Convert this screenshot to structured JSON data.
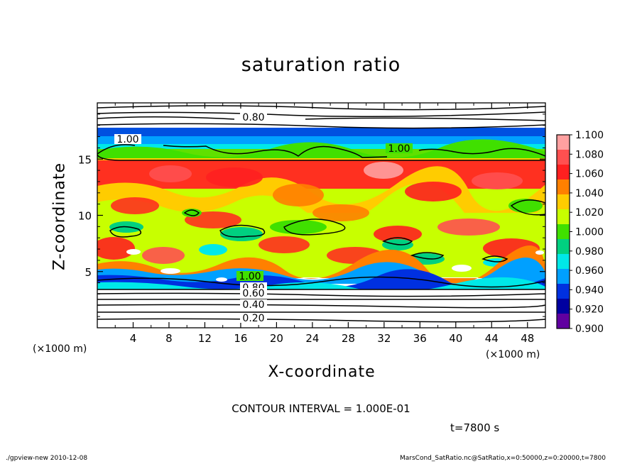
{
  "chart_data": {
    "type": "heatmap",
    "title": "saturation ratio",
    "xlabel": "X-coordinate",
    "ylabel": "Z-coordinate",
    "x_unit": "(×1000 m)",
    "x_unit_right": "(×1000 m)",
    "xlim": [
      0,
      50
    ],
    "ylim": [
      0,
      20
    ],
    "x_ticks": [
      "4",
      "8",
      "12",
      "16",
      "20",
      "24",
      "28",
      "32",
      "36",
      "40",
      "44",
      "48"
    ],
    "x_tick_values": [
      4,
      8,
      12,
      16,
      20,
      24,
      28,
      32,
      36,
      40,
      44,
      48
    ],
    "y_ticks": [
      "5",
      "10",
      "15"
    ],
    "y_tick_values": [
      5,
      10,
      15
    ],
    "colorbar": {
      "labels": [
        "1.100",
        "1.080",
        "1.060",
        "1.040",
        "1.020",
        "1.000",
        "0.980",
        "0.960",
        "0.940",
        "0.920",
        "0.900"
      ],
      "colors": [
        "#ffa0a0",
        "#ff5050",
        "#ff2020",
        "#ff8000",
        "#ffcc00",
        "#c8ff00",
        "#40e000",
        "#00d080",
        "#00e8e8",
        "#00a0ff",
        "#0030e0",
        "#0000a0",
        "#6000a0"
      ]
    },
    "contour_labels": [
      "0.80",
      "1.00",
      "1.00",
      "1.00",
      "0.80",
      "0.60",
      "0.40",
      "0.20"
    ],
    "contour_interval": "CONTOUR INTERVAL = 1.000E-01",
    "time": "t=7800 s"
  },
  "footer": {
    "left": "./gpview-new   2010-12-08",
    "right": "MarsCond_SatRatio.nc@SatRatio,x=0:50000,z=0:20000,t=7800"
  }
}
